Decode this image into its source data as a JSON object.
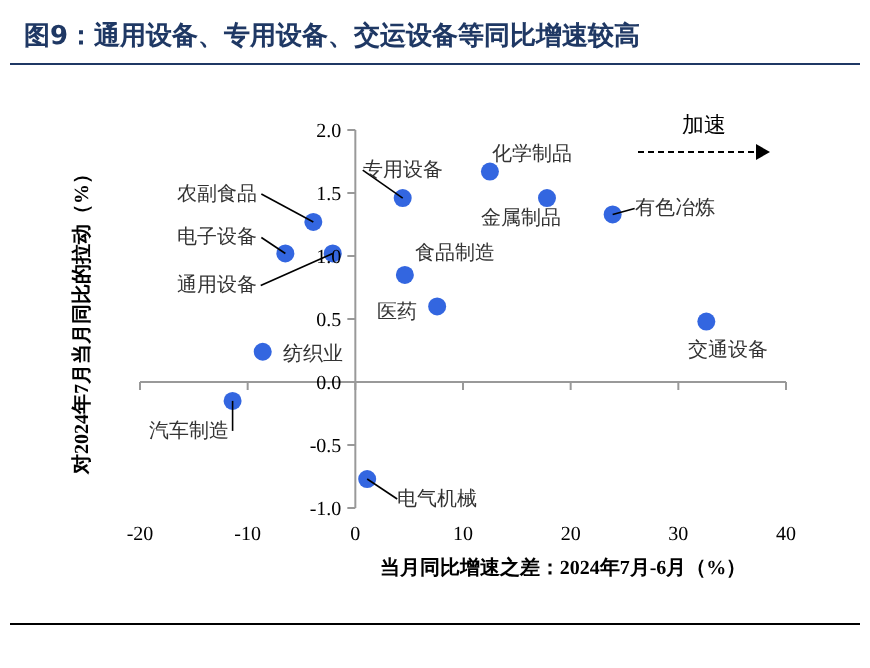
{
  "chart_data": {
    "type": "scatter",
    "title": "图9：通用设备、专用设备、交运设备等同比增速较高",
    "xlabel": "当月同比增速之差：2024年7月-6月（%）",
    "ylabel": "对2024年7月当月同比的拉动（%）",
    "x": [
      -3.9,
      -6.5,
      -2.1,
      -8.6,
      -11.4,
      1.1,
      4.4,
      4.6,
      7.6,
      12.5,
      17.8,
      23.9,
      32.6
    ],
    "series": [
      {
        "color": "#3366e0",
        "values": [
          1.27,
          1.02,
          1.02,
          0.24,
          -0.15,
          -0.77,
          1.46,
          0.85,
          0.6,
          1.67,
          1.46,
          1.33,
          0.48
        ]
      }
    ],
    "xlim": [
      -20,
      40
    ],
    "xticks": [
      -20,
      -10,
      0,
      10,
      20,
      30,
      40
    ],
    "ylim": [
      -1,
      2
    ],
    "yticks": [
      {
        "value": -1,
        "label": "-1.0"
      },
      {
        "value": -0.5,
        "label": "-0.5"
      },
      {
        "value": 0,
        "label": "0.0"
      },
      {
        "value": 0.5,
        "label": "0.5"
      },
      {
        "value": 1,
        "label": "1.0"
      },
      {
        "value": 1.5,
        "label": "1.5"
      },
      {
        "value": 2,
        "label": "2.0"
      }
    ],
    "marker": "circle",
    "annotations": [
      {
        "text": "农副食品",
        "x": -3.9,
        "y": 1.27
      },
      {
        "text": "电子设备",
        "x": -6.5,
        "y": 1.02
      },
      {
        "text": "通用设备",
        "x": -2.1,
        "y": 1.02
      },
      {
        "text": "纺织业",
        "x": -8.6,
        "y": 0.24
      },
      {
        "text": "汽车制造",
        "x": -11.4,
        "y": -0.15
      },
      {
        "text": "电气机械",
        "x": 1.1,
        "y": -0.77
      },
      {
        "text": "专用设备",
        "x": 4.4,
        "y": 1.46
      },
      {
        "text": "食品制造",
        "x": 4.6,
        "y": 0.85
      },
      {
        "text": "医药",
        "x": 7.6,
        "y": 0.6
      },
      {
        "text": "化学制品",
        "x": 12.5,
        "y": 1.67
      },
      {
        "text": "金属制品",
        "x": 17.8,
        "y": 1.46
      },
      {
        "text": "有色冶炼",
        "x": 23.9,
        "y": 1.33
      },
      {
        "text": "交通设备",
        "x": 32.6,
        "y": 0.48
      },
      "加速"
    ]
  }
}
